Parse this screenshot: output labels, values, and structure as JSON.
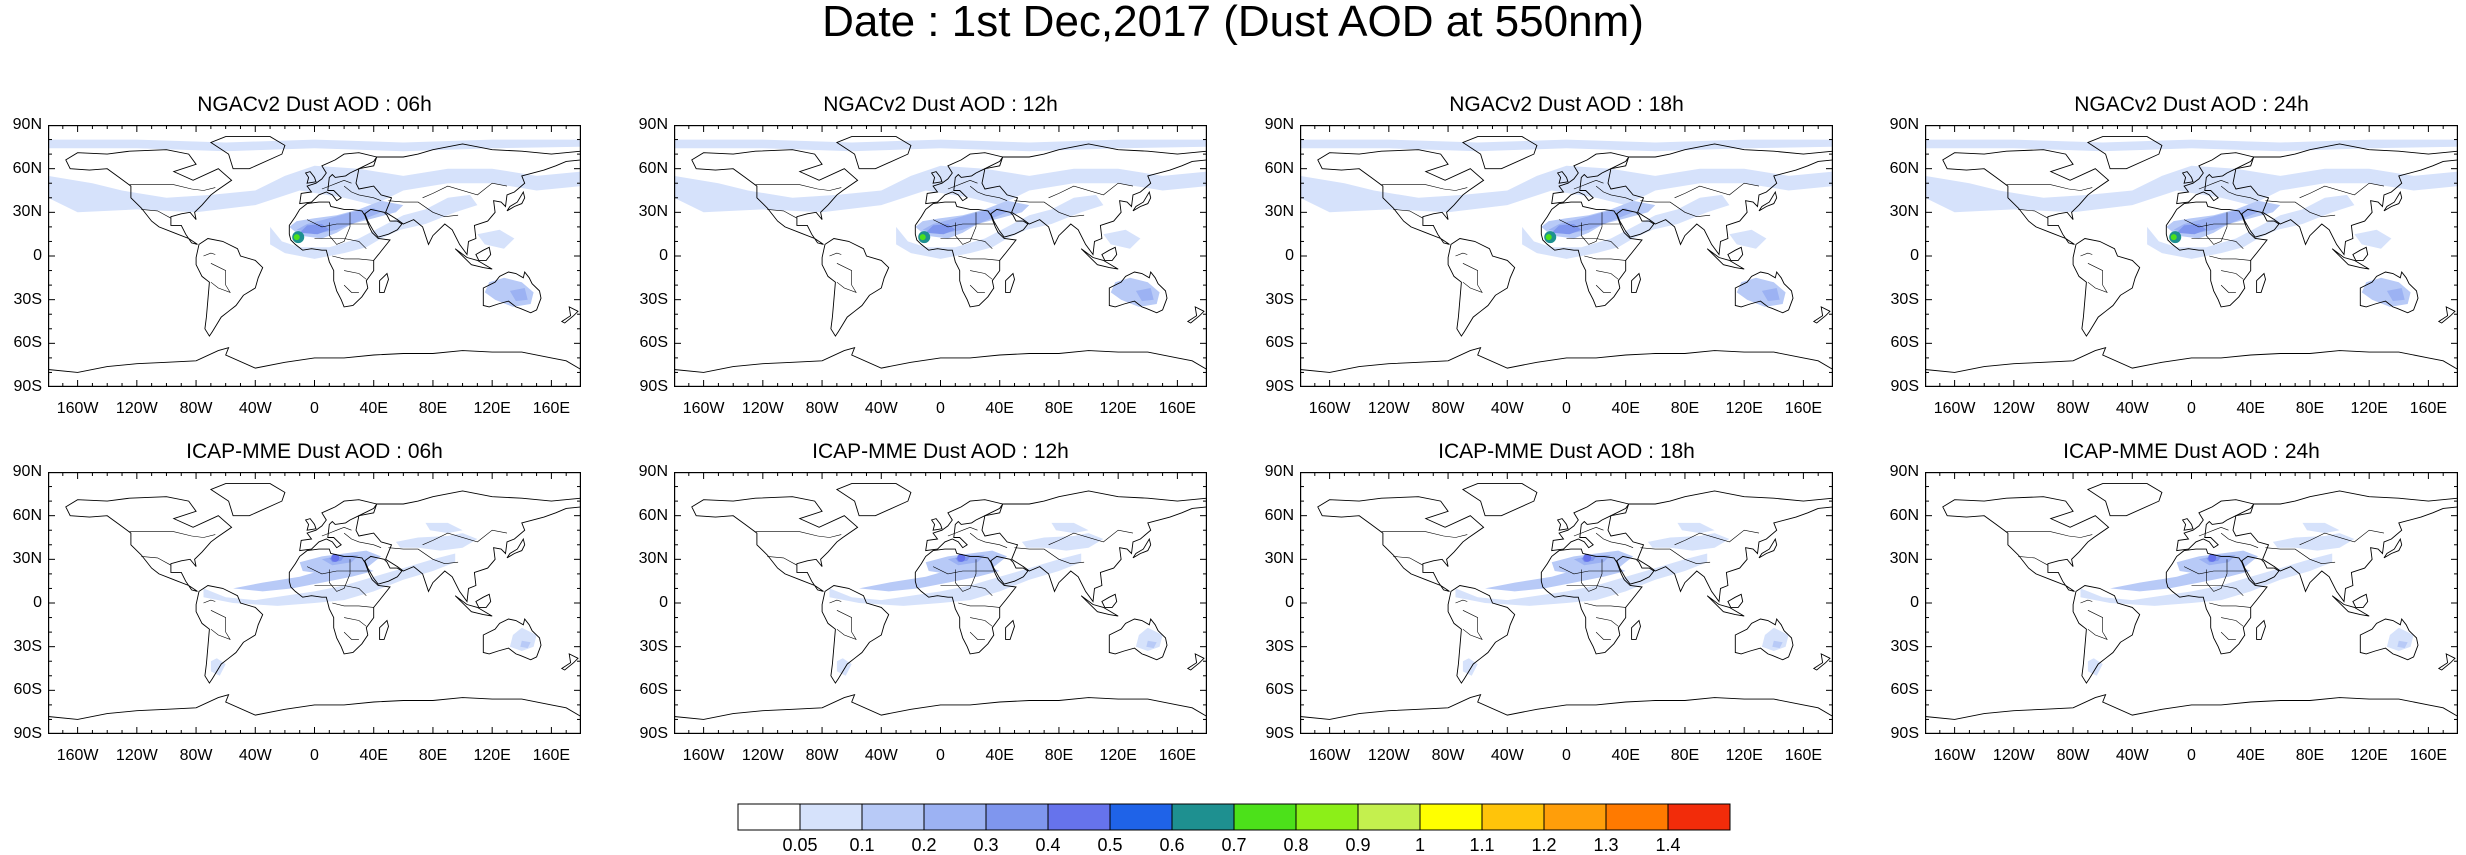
{
  "figure": {
    "title": "Date : 1st Dec,2017 (Dust AOD at 550nm)"
  },
  "axes": {
    "lat_labels": [
      "90N",
      "60N",
      "30N",
      "0",
      "30S",
      "60S",
      "90S"
    ],
    "lon_labels": [
      "160W",
      "120W",
      "80W",
      "40W",
      "0",
      "40E",
      "80E",
      "120E",
      "160E"
    ]
  },
  "panels": [
    {
      "title": "NGACv2 Dust AOD : 06h",
      "model": "NGACv2",
      "hour": "06h"
    },
    {
      "title": "NGACv2 Dust AOD : 12h",
      "model": "NGACv2",
      "hour": "12h"
    },
    {
      "title": "NGACv2 Dust AOD : 18h",
      "model": "NGACv2",
      "hour": "18h"
    },
    {
      "title": "NGACv2 Dust AOD : 24h",
      "model": "NGACv2",
      "hour": "24h"
    },
    {
      "title": "ICAP-MME Dust AOD : 06h",
      "model": "ICAP-MME",
      "hour": "06h"
    },
    {
      "title": "ICAP-MME Dust AOD : 12h",
      "model": "ICAP-MME",
      "hour": "12h"
    },
    {
      "title": "ICAP-MME Dust AOD : 18h",
      "model": "ICAP-MME",
      "hour": "18h"
    },
    {
      "title": "ICAP-MME Dust AOD : 24h",
      "model": "ICAP-MME",
      "hour": "24h"
    }
  ],
  "colorbar": {
    "labels": [
      "0.05",
      "0.1",
      "0.2",
      "0.3",
      "0.4",
      "0.5",
      "0.6",
      "0.7",
      "0.8",
      "0.9",
      "1",
      "1.1",
      "1.2",
      "1.3",
      "1.4"
    ],
    "colors": [
      "#ffffff",
      "#d6e2fb",
      "#b8caf7",
      "#9cb2f3",
      "#7f96ee",
      "#6673ec",
      "#1f63e8",
      "#1e9090",
      "#4ce11a",
      "#8cef18",
      "#c4f04e",
      "#ffff00",
      "#ffc40a",
      "#ff9e0a",
      "#ff7a00",
      "#f22c0a"
    ]
  },
  "plume_colors": [
    "#d6e2fb",
    "#b8caf7",
    "#9cb2f3",
    "#7f96ee"
  ],
  "hotspot_colors": {
    "dark_blue": "#6673ec",
    "teal": "#1e9090",
    "green": "#4ce11a"
  }
}
